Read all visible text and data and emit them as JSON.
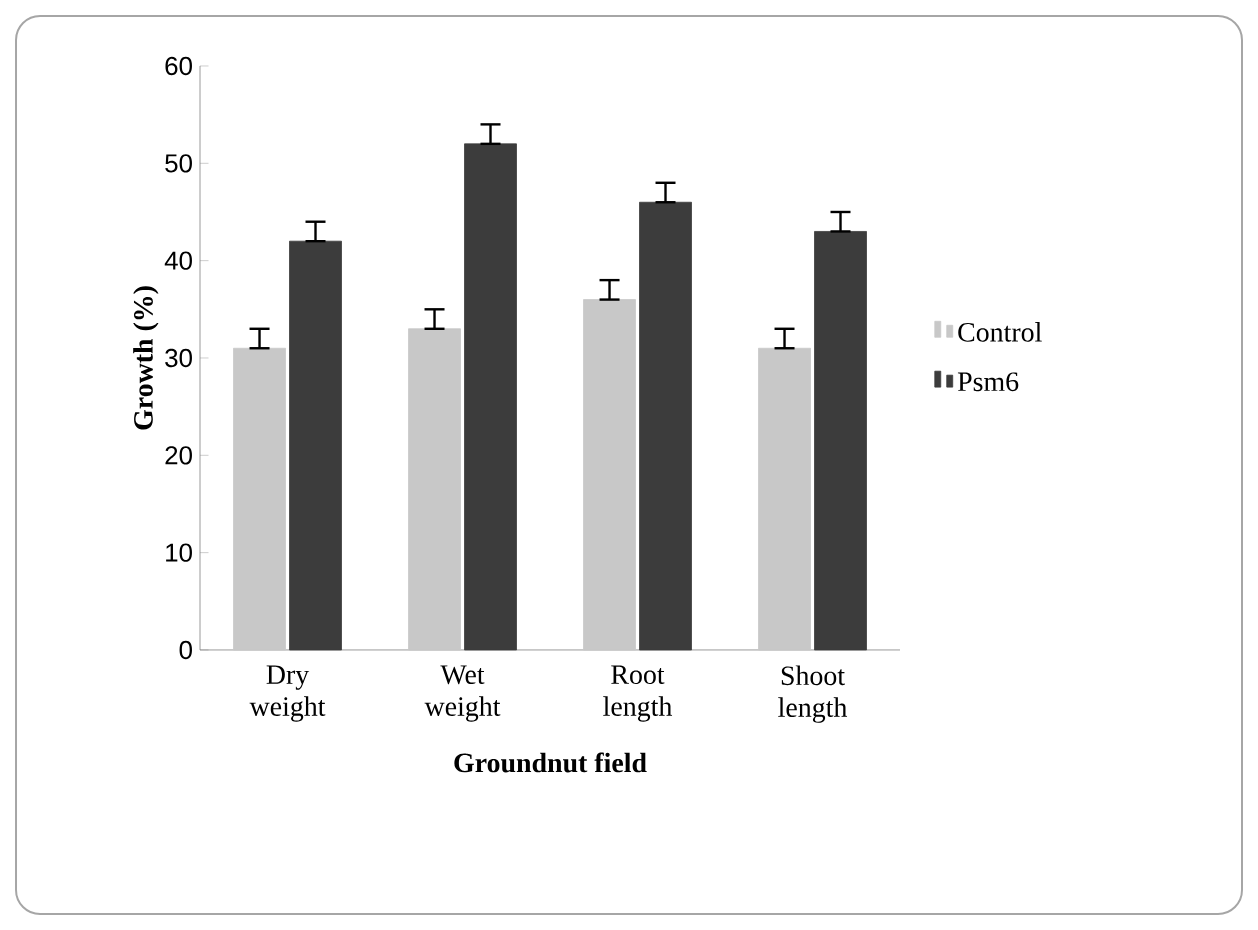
{
  "chart_data": {
    "type": "bar",
    "xlabel": "Groundnut field",
    "ylabel": "Growth (%)",
    "categories": [
      "Dry weight",
      "Wet weight",
      "Root length",
      "Shoot length"
    ],
    "series": [
      {
        "name": "Control",
        "color": "#c8c8c8",
        "values": [
          31,
          33,
          36,
          31
        ],
        "errors": [
          [
            31,
            33
          ],
          [
            33,
            35
          ],
          [
            36,
            38
          ],
          [
            31,
            33
          ]
        ]
      },
      {
        "name": "Psm6",
        "color": "#3c3c3c",
        "values": [
          42,
          52,
          46,
          43
        ],
        "errors": [
          [
            42,
            44
          ],
          [
            52,
            54
          ],
          [
            46,
            48
          ],
          [
            43,
            45
          ]
        ]
      }
    ],
    "ylim": [
      0,
      60
    ],
    "yticks": [
      0,
      10,
      20,
      30,
      40,
      50,
      60
    ],
    "legend": "right"
  }
}
